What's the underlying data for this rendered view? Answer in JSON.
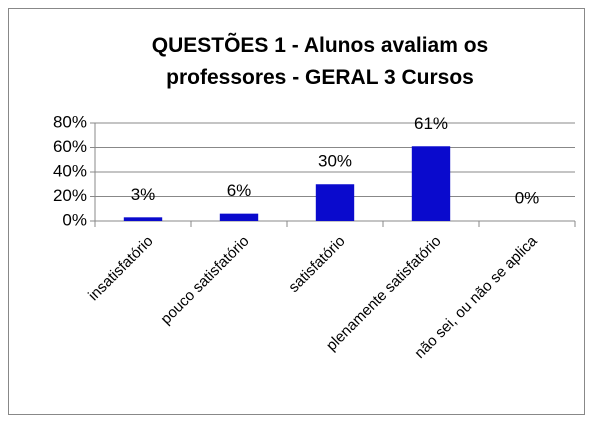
{
  "chart_data": {
    "type": "bar",
    "title": "QUESTÕES 1 - Alunos avaliam os professores - GERAL 3 Cursos",
    "categories": [
      "insatisfatório",
      "pouco satisfatório",
      "satisfatório",
      "plenamente satisfatório",
      "não sei, ou não se aplica"
    ],
    "values": [
      3,
      6,
      30,
      61,
      0
    ],
    "value_labels": [
      "3%",
      "6%",
      "30%",
      "61%",
      "0%"
    ],
    "color": "#0a0acd",
    "ylim": [
      0,
      80
    ],
    "yticks": [
      {
        "value": 0,
        "label": "0%"
      },
      {
        "value": 20,
        "label": "20%"
      },
      {
        "value": 40,
        "label": "40%"
      },
      {
        "value": 60,
        "label": "60%"
      },
      {
        "value": 80,
        "label": "80%"
      }
    ],
    "grid": true
  }
}
